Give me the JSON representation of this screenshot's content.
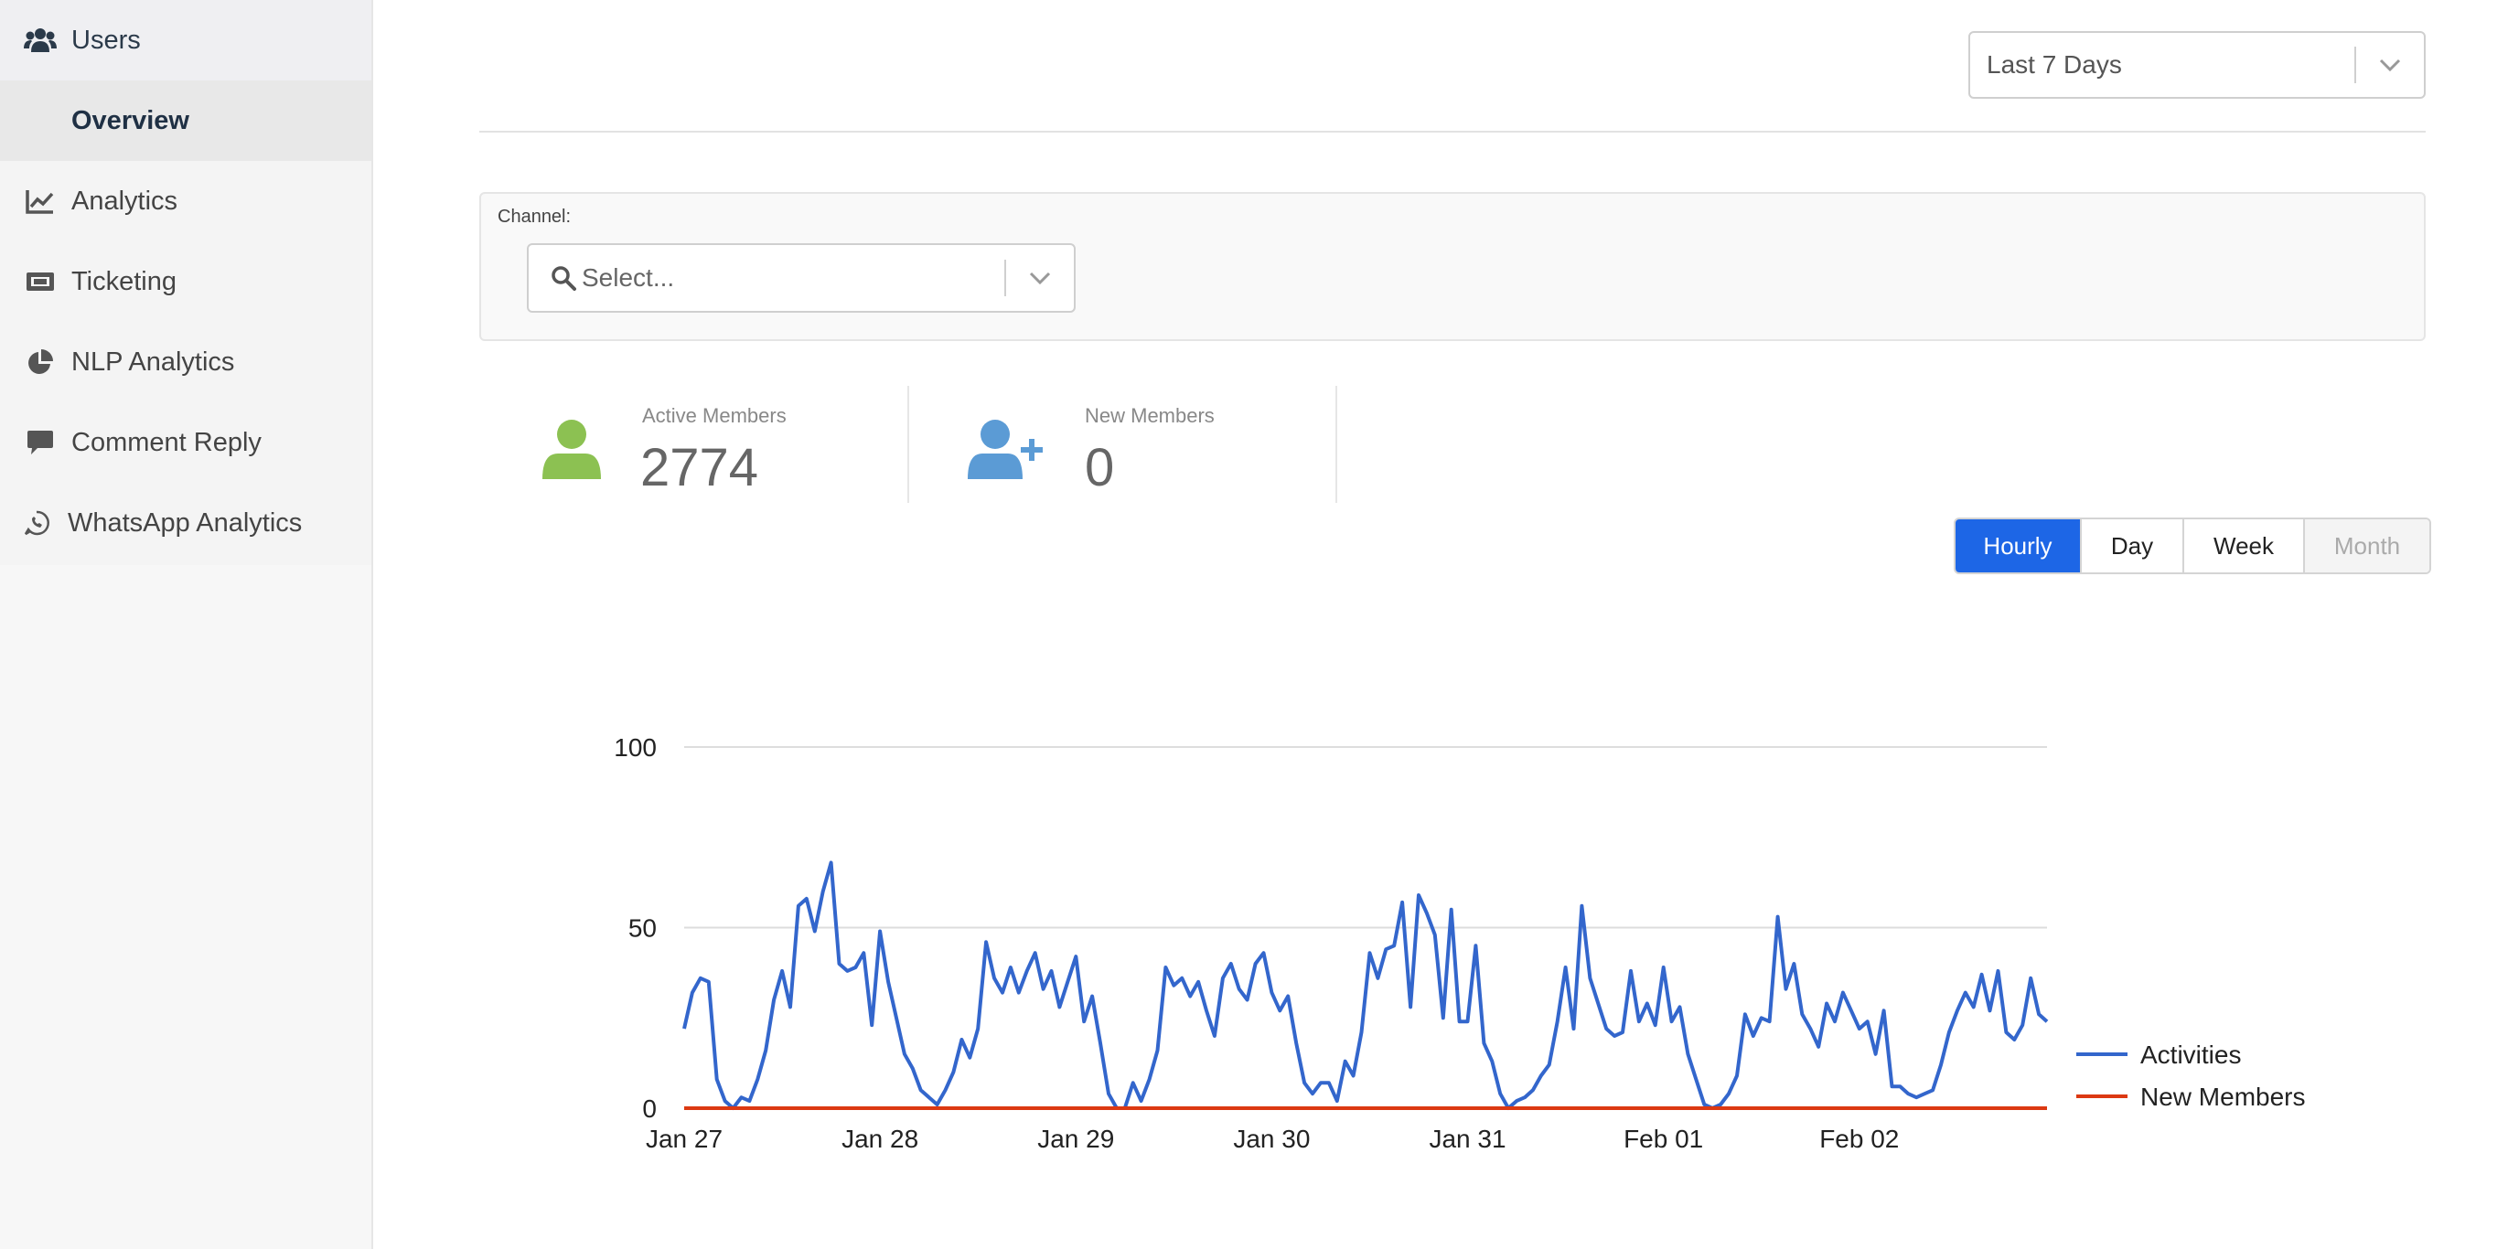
{
  "sidebar": {
    "items": [
      {
        "label": "Users",
        "icon": "users-icon"
      },
      {
        "label": "Overview",
        "icon": ""
      },
      {
        "label": "Analytics",
        "icon": "line-chart-icon"
      },
      {
        "label": "Ticketing",
        "icon": "ticket-icon"
      },
      {
        "label": "NLP Analytics",
        "icon": "pie-chart-icon"
      },
      {
        "label": "Comment Reply",
        "icon": "comment-icon"
      },
      {
        "label": "WhatsApp Analytics",
        "icon": "whatsapp-icon"
      }
    ]
  },
  "date_range": {
    "value": "Last 7 Days"
  },
  "filter": {
    "channel_label": "Channel:",
    "channel_placeholder": "Select..."
  },
  "stats": {
    "active": {
      "label": "Active Members",
      "value": "2774",
      "color": "#8cc152"
    },
    "new": {
      "label": "New Members",
      "value": "0",
      "color": "#5b9bd5"
    }
  },
  "period": {
    "buttons": [
      {
        "label": "Hourly",
        "state": "active"
      },
      {
        "label": "Day",
        "state": "normal"
      },
      {
        "label": "Week",
        "state": "normal"
      },
      {
        "label": "Month",
        "state": "disabled"
      }
    ]
  },
  "colors": {
    "accent": "#1d66e6",
    "activities": "#3366cc",
    "new_members": "#dc3912"
  },
  "chart_data": {
    "type": "line",
    "x_tick_labels": [
      "Jan 27",
      "Jan 28",
      "Jan 29",
      "Jan 30",
      "Jan 31",
      "Feb 01",
      "Feb 02"
    ],
    "ylim": [
      0,
      100
    ],
    "y_ticks": [
      0,
      50,
      100
    ],
    "grid": true,
    "legend_position": "right",
    "series": [
      {
        "name": "Activities",
        "color": "#3366cc",
        "values": [
          22,
          32,
          36,
          35,
          8,
          2,
          0,
          3,
          2,
          8,
          16,
          30,
          38,
          28,
          56,
          58,
          49,
          60,
          68,
          40,
          38,
          39,
          43,
          23,
          49,
          35,
          25,
          15,
          11,
          5,
          3,
          1,
          5,
          10,
          19,
          14,
          22,
          46,
          36,
          32,
          39,
          32,
          38,
          43,
          33,
          38,
          28,
          35,
          42,
          24,
          31,
          18,
          4,
          0,
          0,
          7,
          2,
          8,
          16,
          39,
          34,
          36,
          31,
          35,
          27,
          20,
          36,
          40,
          33,
          30,
          40,
          43,
          32,
          27,
          31,
          18,
          7,
          4,
          7,
          7,
          2,
          13,
          9,
          21,
          43,
          36,
          44,
          45,
          57,
          28,
          59,
          54,
          48,
          25,
          55,
          24,
          24,
          45,
          18,
          13,
          4,
          0,
          2,
          3,
          5,
          9,
          12,
          24,
          39,
          22,
          56,
          36,
          29,
          22,
          20,
          21,
          38,
          24,
          29,
          23,
          39,
          24,
          28,
          15,
          8,
          1,
          0,
          1,
          4,
          9,
          26,
          20,
          25,
          24,
          53,
          33,
          40,
          26,
          22,
          17,
          29,
          24,
          32,
          27,
          22,
          24,
          15,
          27,
          6,
          6,
          4,
          3,
          4,
          5,
          12,
          21,
          27,
          32,
          28,
          37,
          27,
          38,
          21,
          19,
          23,
          36,
          26,
          24
        ]
      },
      {
        "name": "New Members",
        "color": "#dc3912",
        "values": [
          0,
          0
        ]
      }
    ]
  }
}
